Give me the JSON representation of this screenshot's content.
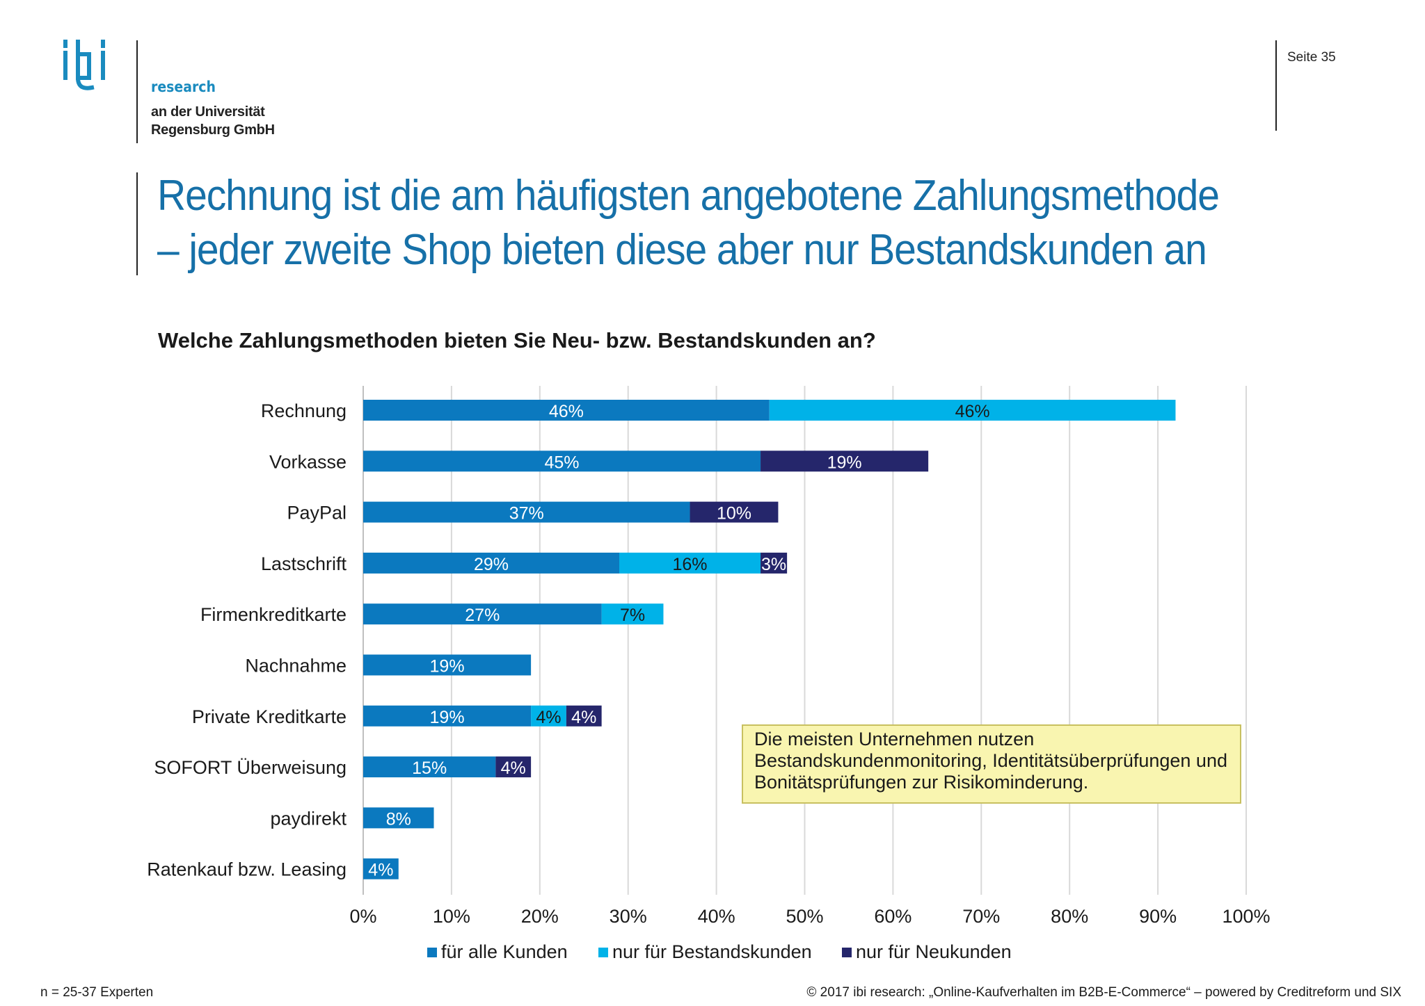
{
  "logo": {
    "mark": "ibi",
    "research": "research",
    "line1": "an der Universität",
    "line2": "Regensburg GmbH"
  },
  "page": {
    "number_label": "Seite 35"
  },
  "title": {
    "line1": "Rechnung ist die am häufigsten angebotene Zahlungsmethode",
    "line2": "– jeder zweite Shop bieten diese aber nur Bestandskunden an"
  },
  "question": "Welche Zahlungsmethoden bieten Sie Neu- bzw. Bestandskunden an?",
  "callout": "Die meisten Unternehmen nutzen Bestandskundenmonitoring, Identitätsüberprüfungen und Bonitätsprüfungen zur Risikominderung.",
  "footer": {
    "sample": "n = 25-37 Experten",
    "source": "© 2017 ibi research: „Online-Kaufverhalten im B2B-E-Commerce“ – powered by Creditreform und SIX"
  },
  "colors": {
    "all": "#0b79bf",
    "existing": "#00b2e8",
    "new": "#25266b",
    "grid": "#d9d9d9",
    "axis": "#bfbfbf"
  },
  "chart_data": {
    "type": "bar",
    "orientation": "horizontal",
    "stacked": true,
    "title": "Welche Zahlungsmethoden bieten Sie Neu- bzw. Bestandskunden an?",
    "categories": [
      "Rechnung",
      "Vorkasse",
      "PayPal",
      "Lastschrift",
      "Firmenkreditkarte",
      "Nachnahme",
      "Private Kreditkarte",
      "SOFORT Überweisung",
      "paydirekt",
      "Ratenkauf bzw. Leasing"
    ],
    "series": [
      {
        "name": "für alle Kunden",
        "color": "#0b79bf",
        "values": [
          46,
          45,
          37,
          29,
          27,
          19,
          19,
          15,
          8,
          4
        ]
      },
      {
        "name": "nur für Bestandskunden",
        "color": "#00b2e8",
        "values": [
          46,
          0,
          0,
          16,
          7,
          0,
          4,
          0,
          0,
          0
        ]
      },
      {
        "name": "nur für Neukunden",
        "color": "#25266b",
        "values": [
          0,
          19,
          10,
          3,
          0,
          0,
          4,
          4,
          0,
          0
        ]
      }
    ],
    "xlim": [
      0,
      100
    ],
    "xticks": [
      "0%",
      "10%",
      "20%",
      "30%",
      "40%",
      "50%",
      "60%",
      "70%",
      "80%",
      "90%",
      "100%"
    ],
    "legend_position": "bottom",
    "grid": true
  }
}
